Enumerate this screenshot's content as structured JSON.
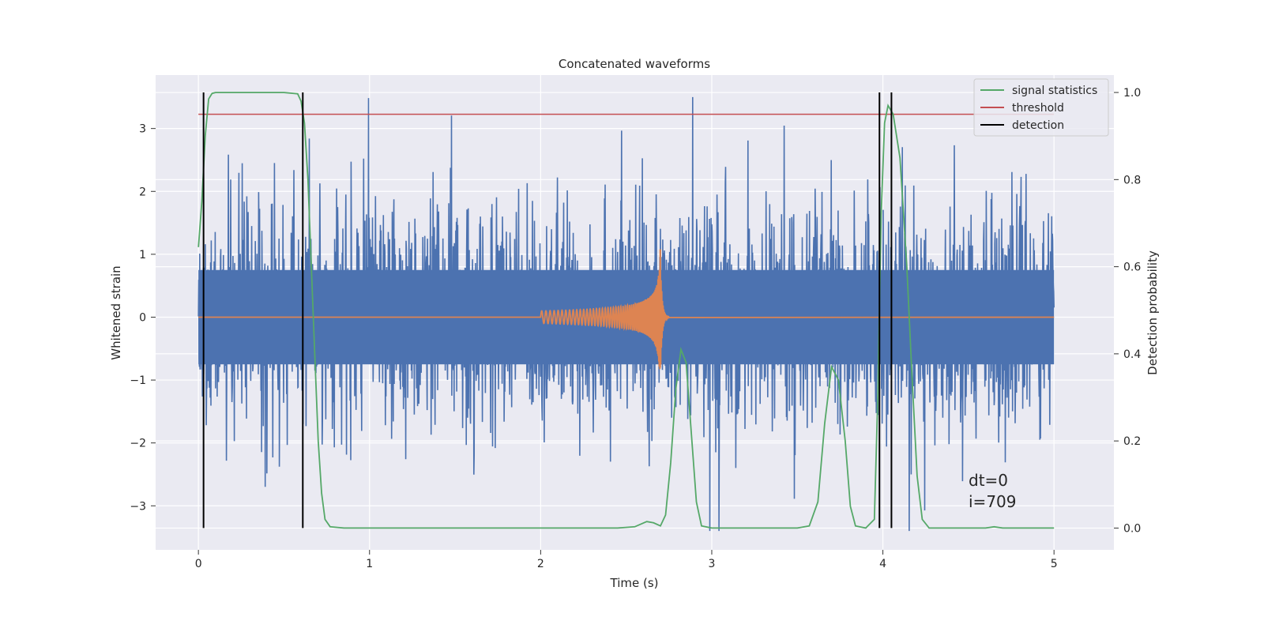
{
  "chart_data": {
    "type": "line",
    "title": "Concatenated waveforms",
    "xlabel": "Time (s)",
    "ylabel": "Whitened strain",
    "ylabel_right": "Detection probability",
    "xlim": [
      -0.25,
      5.35
    ],
    "ylim": [
      -3.7,
      3.85
    ],
    "ylim_right": [
      -0.05,
      1.04
    ],
    "xticks": [
      0,
      1,
      2,
      3,
      4,
      5
    ],
    "yticks": [
      -3,
      -2,
      -1,
      0,
      1,
      2,
      3
    ],
    "yticks_right": [
      0.0,
      0.2,
      0.4,
      0.6,
      0.8,
      1.0
    ],
    "xtick_labels": [
      "0",
      "1",
      "2",
      "3",
      "4",
      "5"
    ],
    "ytick_labels": [
      "−3",
      "−2",
      "−1",
      "0",
      "1",
      "2",
      "3"
    ],
    "ytick_labels_right": [
      "0.0",
      "0.2",
      "0.4",
      "0.6",
      "0.8",
      "1.0"
    ],
    "grid": true,
    "legend_position": "top-right",
    "colors": {
      "strain": "#4c72b0",
      "waveform": "#dd8452",
      "signal_statistics": "#55a868",
      "threshold": "#c44e52",
      "detection": "#000000",
      "axes_bg": "#eaeaf2",
      "grid": "#ffffff"
    },
    "legend": [
      {
        "label": "signal statistics",
        "color": "#55a868"
      },
      {
        "label": "threshold",
        "color": "#c44e52"
      },
      {
        "label": "detection",
        "color": "#000000"
      }
    ],
    "noise": {
      "x_range": [
        0,
        5
      ],
      "core_amplitude": 0.75,
      "max_abs": 3.5,
      "min": -3.4
    },
    "waveform": {
      "start": 2.0,
      "merger": 2.7,
      "end": 2.75,
      "peak_max": 1.22,
      "peak_min": -0.88
    },
    "threshold": {
      "y": 0.95,
      "x_range": [
        0,
        5
      ]
    },
    "detections": [
      0.03,
      0.61,
      3.98,
      4.05
    ],
    "signal_statistics": [
      [
        0.0,
        0.645
      ],
      [
        0.02,
        0.75
      ],
      [
        0.04,
        0.9
      ],
      [
        0.06,
        0.985
      ],
      [
        0.08,
        0.998
      ],
      [
        0.1,
        1.0
      ],
      [
        0.5,
        1.0
      ],
      [
        0.58,
        0.997
      ],
      [
        0.6,
        0.98
      ],
      [
        0.62,
        0.93
      ],
      [
        0.64,
        0.8
      ],
      [
        0.66,
        0.6
      ],
      [
        0.68,
        0.4
      ],
      [
        0.7,
        0.2
      ],
      [
        0.72,
        0.08
      ],
      [
        0.74,
        0.02
      ],
      [
        0.77,
        0.003
      ],
      [
        0.85,
        0.0
      ],
      [
        2.45,
        0.0
      ],
      [
        2.55,
        0.003
      ],
      [
        2.62,
        0.015
      ],
      [
        2.66,
        0.012
      ],
      [
        2.7,
        0.005
      ],
      [
        2.73,
        0.03
      ],
      [
        2.76,
        0.15
      ],
      [
        2.79,
        0.32
      ],
      [
        2.82,
        0.41
      ],
      [
        2.85,
        0.38
      ],
      [
        2.88,
        0.22
      ],
      [
        2.91,
        0.06
      ],
      [
        2.94,
        0.005
      ],
      [
        3.0,
        0.0
      ],
      [
        3.5,
        0.0
      ],
      [
        3.57,
        0.005
      ],
      [
        3.62,
        0.06
      ],
      [
        3.66,
        0.24
      ],
      [
        3.7,
        0.37
      ],
      [
        3.74,
        0.34
      ],
      [
        3.78,
        0.2
      ],
      [
        3.81,
        0.05
      ],
      [
        3.84,
        0.005
      ],
      [
        3.9,
        0.0
      ],
      [
        3.95,
        0.02
      ],
      [
        3.97,
        0.3
      ],
      [
        3.99,
        0.72
      ],
      [
        4.01,
        0.93
      ],
      [
        4.03,
        0.97
      ],
      [
        4.06,
        0.95
      ],
      [
        4.1,
        0.85
      ],
      [
        4.14,
        0.6
      ],
      [
        4.17,
        0.35
      ],
      [
        4.2,
        0.12
      ],
      [
        4.23,
        0.02
      ],
      [
        4.27,
        0.0
      ],
      [
        4.6,
        0.0
      ],
      [
        4.65,
        0.003
      ],
      [
        4.7,
        0.0
      ],
      [
        5.0,
        0.0
      ]
    ],
    "annotations": [
      "dt=0",
      "i=709"
    ],
    "annotation_anchor": [
      4.5,
      -3.1
    ]
  }
}
